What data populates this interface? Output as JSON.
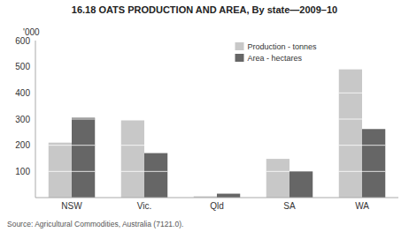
{
  "chart_data": {
    "type": "bar",
    "title": "16.18   OATS PRODUCTION AND AREA, By state—2009–10",
    "ylabel": "'000",
    "source": "Source: Agricultural Commodities, Australia (7121.0).",
    "categories": [
      "NSW",
      "Vic.",
      "Qld",
      "SA",
      "WA"
    ],
    "series": [
      {
        "name": "Production - tonnes",
        "color": "#c8c8c8",
        "values": [
          210,
          295,
          5,
          148,
          490
        ]
      },
      {
        "name": "Area - hectares",
        "color": "#666666",
        "values": [
          305,
          170,
          15,
          100,
          262
        ]
      }
    ],
    "ylim": [
      0,
      600
    ],
    "yticks": [
      100,
      200,
      300,
      400,
      500,
      600
    ],
    "grid": false,
    "legend": "top"
  }
}
